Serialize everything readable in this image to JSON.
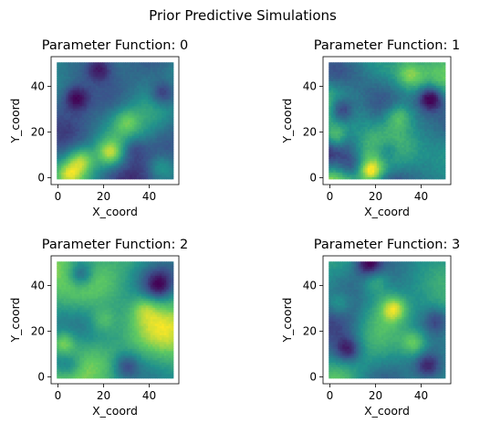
{
  "chart_data": {
    "type": "heatmap",
    "title": "Prior Predictive Simulations",
    "colormap": "viridis",
    "colormap_stops": [
      "#440154",
      "#3b528b",
      "#21918c",
      "#5ec962",
      "#fde725"
    ],
    "background": "#ffffff",
    "panels": [
      {
        "title": "Parameter Function: 0",
        "xlabel": "X_coord",
        "ylabel": "Y_coord",
        "xlim": [
          -3,
          53
        ],
        "ylim": [
          -3,
          53
        ],
        "xticks": [
          0,
          20,
          40
        ],
        "yticks": [
          0,
          20,
          40
        ],
        "grid_extent": [
          0,
          50
        ],
        "seed": 11,
        "hotspots": [
          {
            "x": 23,
            "y": 11,
            "v": 1.0
          },
          {
            "x": 10,
            "y": 8,
            "v": 0.85
          },
          {
            "x": 5,
            "y": 2,
            "v": 0.7
          },
          {
            "x": 45,
            "y": 5,
            "v": 0.6
          },
          {
            "x": 30,
            "y": 25,
            "v": 0.55
          },
          {
            "x": 8,
            "y": 35,
            "v": -0.9
          },
          {
            "x": 46,
            "y": 37,
            "v": -0.85
          },
          {
            "x": 18,
            "y": 48,
            "v": -0.7
          },
          {
            "x": 33,
            "y": 13,
            "v": -0.5
          }
        ]
      },
      {
        "title": "Parameter Function: 1",
        "xlabel": "X_coord",
        "ylabel": "Y_coord",
        "xlim": [
          -3,
          53
        ],
        "ylim": [
          -3,
          53
        ],
        "xticks": [
          0,
          20,
          40
        ],
        "yticks": [
          0,
          20,
          40
        ],
        "grid_extent": [
          0,
          50
        ],
        "seed": 23,
        "hotspots": [
          {
            "x": 18,
            "y": 3,
            "v": 1.0
          },
          {
            "x": 2,
            "y": 18,
            "v": 0.8
          },
          {
            "x": 30,
            "y": 27,
            "v": 0.55
          },
          {
            "x": 35,
            "y": 45,
            "v": 0.5
          },
          {
            "x": 44,
            "y": 35,
            "v": -1.0
          },
          {
            "x": 5,
            "y": 30,
            "v": -0.85
          },
          {
            "x": 25,
            "y": 12,
            "v": -0.5
          },
          {
            "x": 10,
            "y": 5,
            "v": -0.45
          }
        ]
      },
      {
        "title": "Parameter Function: 2",
        "xlabel": "X_coord",
        "ylabel": "Y_coord",
        "xlim": [
          -3,
          53
        ],
        "ylim": [
          -3,
          53
        ],
        "xticks": [
          0,
          20,
          40
        ],
        "yticks": [
          0,
          20,
          40
        ],
        "grid_extent": [
          0,
          50
        ],
        "seed": 37,
        "hotspots": [
          {
            "x": 2,
            "y": 15,
            "v": 1.0
          },
          {
            "x": 20,
            "y": 25,
            "v": 0.55
          },
          {
            "x": 38,
            "y": 30,
            "v": 0.5
          },
          {
            "x": 10,
            "y": 45,
            "v": -1.0
          },
          {
            "x": 44,
            "y": 40,
            "v": -0.85
          },
          {
            "x": 30,
            "y": 5,
            "v": -0.7
          },
          {
            "x": 5,
            "y": 5,
            "v": -0.55
          }
        ]
      },
      {
        "title": "Parameter Function: 3",
        "xlabel": "X_coord",
        "ylabel": "Y_coord",
        "xlim": [
          -3,
          53
        ],
        "ylim": [
          -3,
          53
        ],
        "xticks": [
          0,
          20,
          40
        ],
        "yticks": [
          0,
          20,
          40
        ],
        "grid_extent": [
          0,
          50
        ],
        "seed": 53,
        "hotspots": [
          {
            "x": 28,
            "y": 30,
            "v": 1.0
          },
          {
            "x": 37,
            "y": 15,
            "v": 0.8
          },
          {
            "x": 4,
            "y": 32,
            "v": 0.6
          },
          {
            "x": 20,
            "y": 42,
            "v": 0.5
          },
          {
            "x": 17,
            "y": 50,
            "v": -1.0
          },
          {
            "x": 8,
            "y": 12,
            "v": -0.9
          },
          {
            "x": 43,
            "y": 5,
            "v": -0.8
          },
          {
            "x": 47,
            "y": 25,
            "v": -0.6
          }
        ]
      }
    ]
  }
}
